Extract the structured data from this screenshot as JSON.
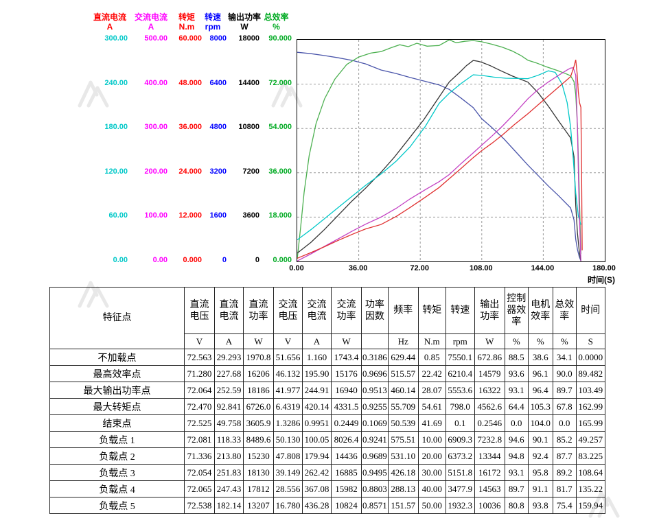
{
  "watermark_color": "#d7d7d7",
  "chart_data": {
    "type": "line",
    "title": "",
    "xlabel": "时间(S)",
    "x_range": [
      0,
      180
    ],
    "x_ticks": [
      "0.00",
      "36.00",
      "72.00",
      "108.00",
      "144.00",
      "180.00"
    ],
    "grid": true,
    "legend_position": "top-left-axis-stack",
    "axes": [
      {
        "key": "dc-current",
        "name": "直流电流",
        "unit": "A",
        "label_color": "#ff0000",
        "tick_color": "#00c8c8",
        "range": [
          0,
          300
        ],
        "ticks": [
          "300.00",
          "240.00",
          "180.00",
          "120.00",
          "60.00",
          "0.00"
        ]
      },
      {
        "key": "ac-current",
        "name": "交流电流",
        "unit": "A",
        "label_color": "#ff00ff",
        "tick_color": "#ff00ff",
        "range": [
          0,
          500
        ],
        "ticks": [
          "500.00",
          "400.00",
          "300.00",
          "200.00",
          "100.00",
          "0.00"
        ]
      },
      {
        "key": "torque",
        "name": "转矩",
        "unit": "N.m",
        "label_color": "#ff0000",
        "tick_color": "#ff0000",
        "range": [
          0,
          60
        ],
        "ticks": [
          "60.000",
          "48.000",
          "36.000",
          "24.000",
          "12.000",
          "0.000"
        ]
      },
      {
        "key": "speed",
        "name": "转速",
        "unit": "rpm",
        "label_color": "#0000ff",
        "tick_color": "#0000ff",
        "range": [
          0,
          8000
        ],
        "ticks": [
          "8000",
          "6400",
          "4800",
          "3200",
          "1600",
          "0"
        ]
      },
      {
        "key": "output-power",
        "name": "输出功率",
        "unit": "W",
        "label_color": "#000000",
        "tick_color": "#000000",
        "range": [
          0,
          18000
        ],
        "ticks": [
          "18000",
          "14400",
          "10800",
          "7200",
          "3600",
          "0"
        ]
      },
      {
        "key": "efficiency",
        "name": "总效率",
        "unit": "%",
        "label_color": "#00aa22",
        "tick_color": "#00aa22",
        "range": [
          0,
          90
        ],
        "ticks": [
          "90.000",
          "72.000",
          "54.000",
          "36.000",
          "18.000",
          "0.000"
        ]
      }
    ],
    "series": [
      {
        "key": "speed",
        "name": "转速",
        "color": "#4a55aa",
        "axis": 3,
        "points": [
          [
            0,
            7550
          ],
          [
            8,
            7500
          ],
          [
            16,
            7430
          ],
          [
            24,
            7350
          ],
          [
            32,
            7260
          ],
          [
            40,
            7130
          ],
          [
            49,
            6909
          ],
          [
            58,
            6780
          ],
          [
            66,
            6640
          ],
          [
            75,
            6500
          ],
          [
            83,
            6373
          ],
          [
            89,
            6210
          ],
          [
            96,
            5890
          ],
          [
            103,
            5554
          ],
          [
            108,
            5152
          ],
          [
            114,
            4830
          ],
          [
            121,
            4420
          ],
          [
            128,
            3950
          ],
          [
            135,
            3478
          ],
          [
            141,
            3100
          ],
          [
            147,
            2720
          ],
          [
            153,
            2370
          ],
          [
            160,
            1932
          ],
          [
            162,
            1500
          ],
          [
            163,
            798
          ],
          [
            164,
            430
          ],
          [
            165,
            180
          ],
          [
            166,
            20
          ]
        ]
      },
      {
        "key": "efficiency",
        "name": "总效率",
        "color": "#4cb050",
        "axis": 5,
        "points": [
          [
            0,
            1
          ],
          [
            2,
            14
          ],
          [
            4,
            28
          ],
          [
            7,
            43
          ],
          [
            11,
            56
          ],
          [
            16,
            66
          ],
          [
            22,
            74
          ],
          [
            29,
            80
          ],
          [
            36,
            83
          ],
          [
            43,
            84.6
          ],
          [
            49,
            85.2
          ],
          [
            55,
            86.8
          ],
          [
            60,
            88
          ],
          [
            65,
            87.2
          ],
          [
            70,
            88.6
          ],
          [
            76,
            87.4
          ],
          [
            83,
            87.7
          ],
          [
            89,
            90
          ],
          [
            93,
            88.8
          ],
          [
            98,
            89.4
          ],
          [
            103,
            89.7
          ],
          [
            108,
            89.2
          ],
          [
            114,
            88.2
          ],
          [
            120,
            87
          ],
          [
            126,
            85.4
          ],
          [
            131,
            83.6
          ],
          [
            135,
            81.7
          ],
          [
            140,
            80.6
          ],
          [
            146,
            79
          ],
          [
            152,
            77.6
          ],
          [
            157,
            76.3
          ],
          [
            160,
            75.4
          ],
          [
            162,
            73
          ],
          [
            163,
            67.8
          ],
          [
            164,
            55
          ],
          [
            165,
            30
          ],
          [
            166,
            3
          ]
        ]
      },
      {
        "key": "output-power",
        "name": "输出功率",
        "color": "#333333",
        "axis": 4,
        "points": [
          [
            0,
            673
          ],
          [
            8,
            1550
          ],
          [
            16,
            2600
          ],
          [
            24,
            3750
          ],
          [
            32,
            4900
          ],
          [
            40,
            5950
          ],
          [
            49,
            7233
          ],
          [
            57,
            8500
          ],
          [
            65,
            9900
          ],
          [
            74,
            11500
          ],
          [
            83,
            13344
          ],
          [
            89,
            14579
          ],
          [
            95,
            15350
          ],
          [
            99,
            15900
          ],
          [
            103,
            16322
          ],
          [
            106,
            16250
          ],
          [
            108,
            16172
          ],
          [
            113,
            15900
          ],
          [
            119,
            15500
          ],
          [
            126,
            15050
          ],
          [
            135,
            14563
          ],
          [
            141,
            13700
          ],
          [
            147,
            12600
          ],
          [
            153,
            11400
          ],
          [
            160,
            10036
          ],
          [
            162,
            8500
          ],
          [
            163,
            4563
          ],
          [
            164,
            2300
          ],
          [
            165,
            900
          ],
          [
            166,
            30
          ]
        ]
      },
      {
        "key": "dc-current",
        "name": "直流电流",
        "color": "#00c8c8",
        "axis": 0,
        "points": [
          [
            0,
            29.3
          ],
          [
            8,
            43
          ],
          [
            16,
            58
          ],
          [
            24,
            73
          ],
          [
            32,
            88
          ],
          [
            40,
            103
          ],
          [
            49,
            118.3
          ],
          [
            58,
            136
          ],
          [
            66,
            155
          ],
          [
            75,
            183
          ],
          [
            83,
            213.8
          ],
          [
            89,
            227.7
          ],
          [
            96,
            241
          ],
          [
            103,
            252.6
          ],
          [
            108,
            251.8
          ],
          [
            115,
            249.5
          ],
          [
            122,
            248
          ],
          [
            129,
            247.6
          ],
          [
            135,
            247.4
          ],
          [
            141,
            252
          ],
          [
            147,
            258
          ],
          [
            151,
            256
          ],
          [
            155,
            240
          ],
          [
            158,
            215
          ],
          [
            160,
            182.1
          ],
          [
            161.5,
            140
          ],
          [
            163,
            92.8
          ],
          [
            164.5,
            62
          ],
          [
            166,
            49.8
          ]
        ]
      },
      {
        "key": "ac-current",
        "name": "交流电流",
        "color": "#c340c3",
        "axis": 1,
        "points": [
          [
            0,
            1.16
          ],
          [
            8,
            17
          ],
          [
            16,
            34
          ],
          [
            24,
            51
          ],
          [
            32,
            68
          ],
          [
            40,
            84
          ],
          [
            49,
            100.05
          ],
          [
            58,
            120
          ],
          [
            66,
            141
          ],
          [
            75,
            162
          ],
          [
            83,
            179.9
          ],
          [
            89,
            195.9
          ],
          [
            96,
            221
          ],
          [
            103,
            244.9
          ],
          [
            108,
            262.4
          ],
          [
            114,
            283
          ],
          [
            120,
            305
          ],
          [
            127,
            333
          ],
          [
            135,
            367.1
          ],
          [
            141,
            388
          ],
          [
            147,
            405
          ],
          [
            153,
            420
          ],
          [
            158,
            432
          ],
          [
            160,
            436.3
          ],
          [
            161.5,
            437
          ],
          [
            163,
            420.1
          ],
          [
            164,
            300
          ],
          [
            165,
            120
          ],
          [
            166,
            1
          ]
        ]
      },
      {
        "key": "torque",
        "name": "转矩",
        "color": "#e03030",
        "axis": 2,
        "points": [
          [
            0,
            0.85
          ],
          [
            8,
            2.4
          ],
          [
            16,
            4
          ],
          [
            24,
            5.7
          ],
          [
            32,
            7.3
          ],
          [
            40,
            8.8
          ],
          [
            49,
            10
          ],
          [
            58,
            12.2
          ],
          [
            66,
            14.6
          ],
          [
            75,
            17.4
          ],
          [
            83,
            20
          ],
          [
            89,
            22.4
          ],
          [
            96,
            25.2
          ],
          [
            103,
            28.1
          ],
          [
            108,
            30
          ],
          [
            114,
            32
          ],
          [
            120,
            34.2
          ],
          [
            127,
            37
          ],
          [
            135,
            40
          ],
          [
            141,
            42.4
          ],
          [
            147,
            44.8
          ],
          [
            153,
            47.2
          ],
          [
            158,
            49.2
          ],
          [
            160,
            50
          ],
          [
            162,
            52.8
          ],
          [
            163,
            54.6
          ],
          [
            163.8,
            51
          ],
          [
            164.5,
            46
          ],
          [
            165.2,
            43
          ],
          [
            166,
            41.7
          ],
          [
            166.4,
            25
          ],
          [
            166.8,
            3
          ]
        ]
      }
    ]
  },
  "table": {
    "corner_header": "特征点",
    "columns": [
      {
        "label": "直流\n电压",
        "unit": "V"
      },
      {
        "label": "直流\n电流",
        "unit": "A"
      },
      {
        "label": "直流\n功率",
        "unit": "W"
      },
      {
        "label": "交流\n电压",
        "unit": "V"
      },
      {
        "label": "交流\n电流",
        "unit": "A"
      },
      {
        "label": "交流\n功率",
        "unit": "W"
      },
      {
        "label": "功率\n因数",
        "unit": ""
      },
      {
        "label": "频率",
        "unit": "Hz"
      },
      {
        "label": "转矩",
        "unit": "N.m"
      },
      {
        "label": "转速",
        "unit": "rpm"
      },
      {
        "label": "输出\n功率",
        "unit": "W"
      },
      {
        "label": "控制\n器效\n率",
        "unit": "%"
      },
      {
        "label": "电机\n效率",
        "unit": "%"
      },
      {
        "label": "总效\n率",
        "unit": "%"
      },
      {
        "label": "时间",
        "unit": "S"
      }
    ],
    "rows": [
      {
        "label": "不加载点",
        "values": [
          "72.563",
          "29.293",
          "1970.8",
          "51.656",
          "1.160",
          "1743.4",
          "0.3186",
          "629.44",
          "0.85",
          "7550.1",
          "672.86",
          "88.5",
          "38.6",
          "34.1",
          "0.0000"
        ]
      },
      {
        "label": "最高效率点",
        "values": [
          "71.280",
          "227.68",
          "16206",
          "46.132",
          "195.90",
          "15176",
          "0.9696",
          "515.57",
          "22.42",
          "6210.4",
          "14579",
          "93.6",
          "96.1",
          "90.0",
          "89.482"
        ]
      },
      {
        "label": "最大输出功率点",
        "values": [
          "72.064",
          "252.59",
          "18186",
          "41.977",
          "244.91",
          "16940",
          "0.9513",
          "460.14",
          "28.07",
          "5553.6",
          "16322",
          "93.1",
          "96.4",
          "89.7",
          "103.49"
        ]
      },
      {
        "label": "最大转矩点",
        "values": [
          "72.470",
          "92.841",
          "6726.0",
          "6.4319",
          "420.14",
          "4331.5",
          "0.9255",
          "55.709",
          "54.61",
          "798.0",
          "4562.6",
          "64.4",
          "105.3",
          "67.8",
          "162.99"
        ]
      },
      {
        "label": "结束点",
        "values": [
          "72.525",
          "49.758",
          "3605.9",
          "1.3286",
          "0.9951",
          "0.2449",
          "0.1069",
          "50.539",
          "41.69",
          "0.1",
          "0.2546",
          "0.0",
          "104.0",
          "0.0",
          "165.99"
        ]
      },
      {
        "label": "负载点 1",
        "values": [
          "72.081",
          "118.33",
          "8489.6",
          "50.130",
          "100.05",
          "8026.4",
          "0.9241",
          "575.51",
          "10.00",
          "6909.3",
          "7232.8",
          "94.6",
          "90.1",
          "85.2",
          "49.257"
        ]
      },
      {
        "label": "负载点 2",
        "values": [
          "71.336",
          "213.80",
          "15230",
          "47.808",
          "179.94",
          "14436",
          "0.9689",
          "531.10",
          "20.00",
          "6373.2",
          "13344",
          "94.8",
          "92.4",
          "87.7",
          "83.225"
        ]
      },
      {
        "label": "负载点 3",
        "values": [
          "72.054",
          "251.83",
          "18130",
          "39.149",
          "262.42",
          "16885",
          "0.9495",
          "426.18",
          "30.00",
          "5151.8",
          "16172",
          "93.1",
          "95.8",
          "89.2",
          "108.64"
        ]
      },
      {
        "label": "负载点 4",
        "values": [
          "72.065",
          "247.43",
          "17812",
          "28.556",
          "367.08",
          "15982",
          "0.8803",
          "288.13",
          "40.00",
          "3477.9",
          "14563",
          "89.7",
          "91.1",
          "81.7",
          "135.22"
        ]
      },
      {
        "label": "负载点 5",
        "values": [
          "72.538",
          "182.14",
          "13207",
          "16.780",
          "436.28",
          "10824",
          "0.8571",
          "151.57",
          "50.00",
          "1932.3",
          "10036",
          "80.8",
          "93.8",
          "75.4",
          "159.94"
        ]
      }
    ]
  }
}
